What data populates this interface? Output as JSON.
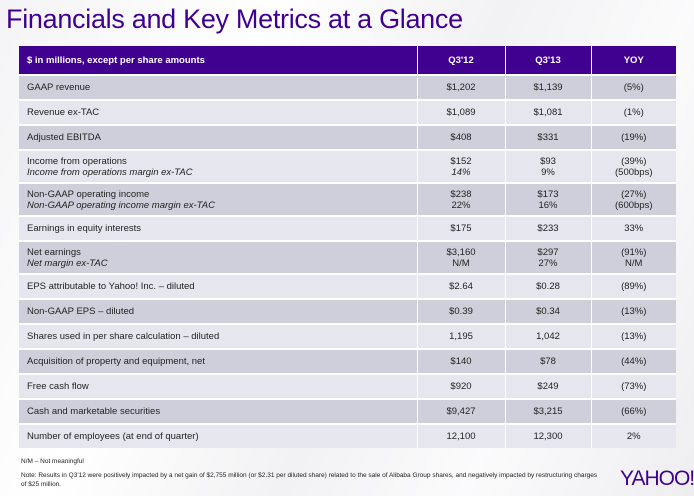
{
  "title": "Financials and Key Metrics at a Glance",
  "table": {
    "headers": [
      "$ in millions, except per share amounts",
      "Q3'12",
      "Q3'13",
      "YOY"
    ],
    "rows": [
      {
        "label": "GAAP revenue",
        "q312": "$1,202",
        "q313": "$1,139",
        "yoy": "(5%)"
      },
      {
        "label": "Revenue ex-TAC",
        "q312": "$1,089",
        "q313": "$1,081",
        "yoy": "(1%)"
      },
      {
        "label": "Adjusted EBITDA",
        "q312": "$408",
        "q313": "$331",
        "yoy": "(19%)"
      },
      {
        "label": "Income from operations",
        "sub_label": "Income from operations margin ex-TAC",
        "q312": "$152",
        "q312_sub": "14%",
        "q313": "$93",
        "q313_sub": "9%",
        "yoy": "(39%)",
        "yoy_sub": "(500bps)"
      },
      {
        "label": "Non-GAAP operating income",
        "sub_label": "Non-GAAP operating income margin ex-TAC",
        "q312": "$238",
        "q312_sub": "22%",
        "q313": "$173",
        "q313_sub": "16%",
        "yoy": "(27%)",
        "yoy_sub": "(600bps)"
      },
      {
        "label": "Earnings in equity interests",
        "q312": "$175",
        "q313": "$233",
        "yoy": "33%"
      },
      {
        "label": "Net earnings",
        "sub_label": "Net margin ex-TAC",
        "q312": "$3,160",
        "q312_sub": "N/M",
        "q313": "$297",
        "q313_sub": "27%",
        "yoy": "(91%)",
        "yoy_sub": "N/M"
      },
      {
        "label": "EPS attributable to Yahoo! Inc. – diluted",
        "q312": "$2.64",
        "q313": "$0.28",
        "yoy": "(89%)"
      },
      {
        "label": "Non-GAAP EPS – diluted",
        "q312": "$0.39",
        "q313": "$0.34",
        "yoy": "(13%)"
      },
      {
        "label": "Shares used in per share calculation – diluted",
        "q312": "1,195",
        "q313": "1,042",
        "yoy": "(13%)"
      },
      {
        "label": "Acquisition of property and equipment, net",
        "q312": "$140",
        "q313": "$78",
        "yoy": "(44%)"
      },
      {
        "label": "Free cash flow",
        "q312": "$920",
        "q313": "$249",
        "yoy": "(73%)"
      },
      {
        "label": "Cash and marketable securities",
        "q312": "$9,427",
        "q313": "$3,215",
        "yoy": "(66%)"
      },
      {
        "label": "Number of employees (at end of quarter)",
        "q312": "12,100",
        "q313": "12,300",
        "yoy": "2%"
      }
    ]
  },
  "footnotes": {
    "nm": "N/M – Not meaningful",
    "note": "Note:  Results in Q3'12 were positively impacted by a net gain of $2,755 million (or $2.31 per diluted share) related to the sale of Alibaba Group shares, and negatively impacted by restructuring charges of $25 million."
  },
  "logo": "YAHOO!",
  "colors": {
    "brand": "#400090",
    "row_dark": "#cfcfdc",
    "row_light": "#e6e6ee"
  }
}
